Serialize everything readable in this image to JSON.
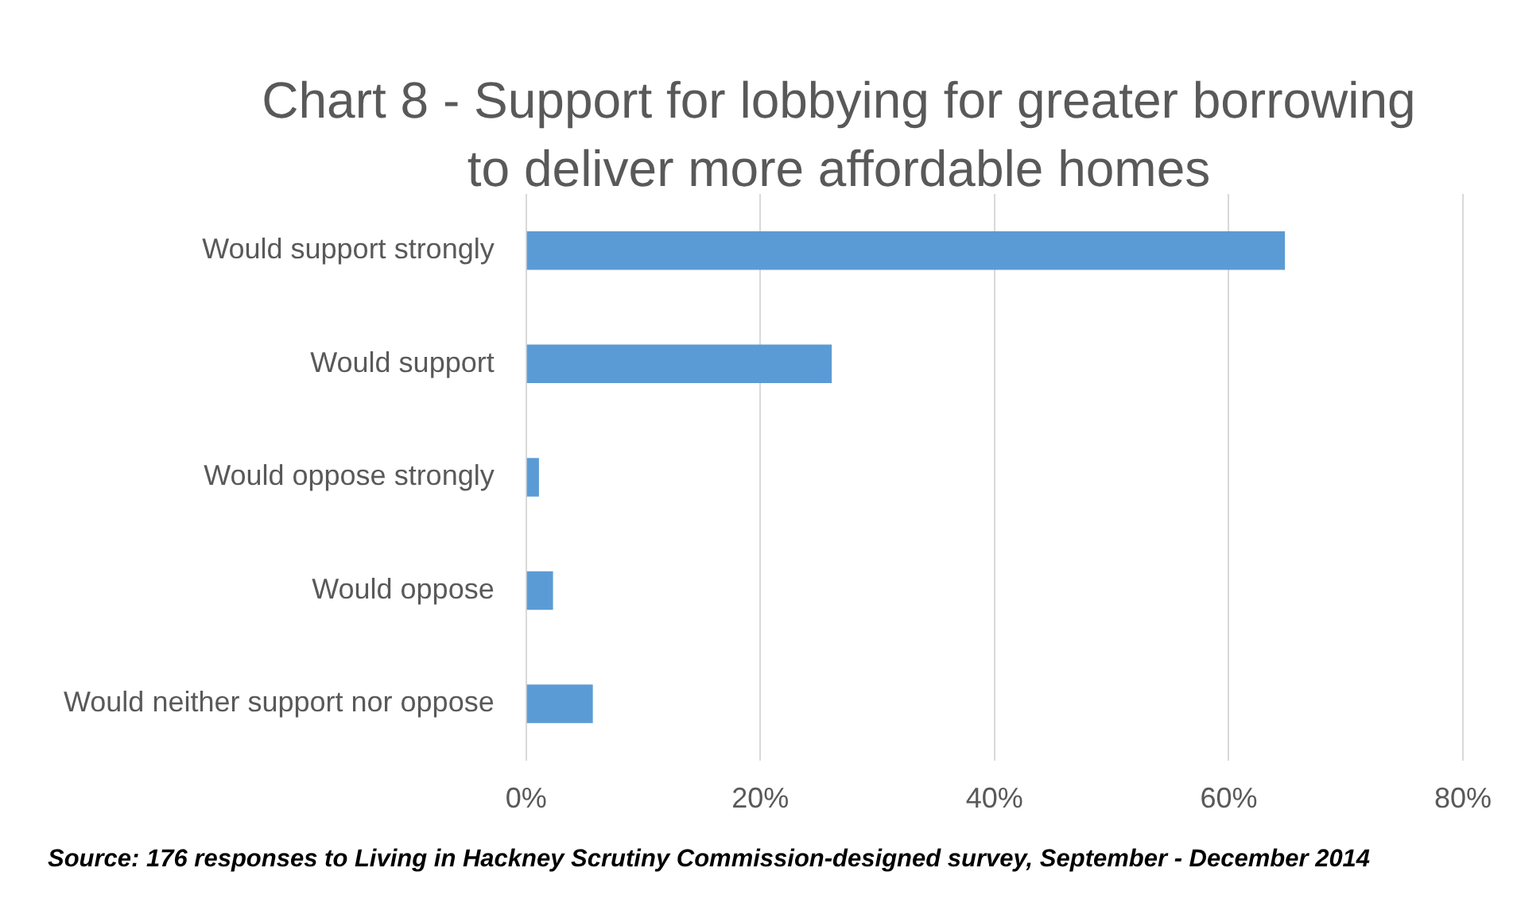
{
  "chart_data": {
    "type": "bar",
    "orientation": "horizontal",
    "title": "Chart 8 - Support for lobbying for greater borrowing to deliver more affordable homes",
    "categories": [
      "Would support strongly",
      "Would support",
      "Would oppose strongly",
      "Would oppose",
      "Would neither support nor oppose"
    ],
    "values": [
      64.8,
      26.1,
      1.1,
      2.3,
      5.7
    ],
    "color": "#5b9bd5",
    "xlim": [
      0,
      80
    ],
    "xticks": [
      {
        "value": 0,
        "label": "0%"
      },
      {
        "value": 20,
        "label": "20%"
      },
      {
        "value": 40,
        "label": "40%"
      },
      {
        "value": 60,
        "label": "60%"
      },
      {
        "value": 80,
        "label": "80%"
      }
    ],
    "grid": "x",
    "legend": false,
    "annotations": [
      "Source: 176 responses to Living in Hackney Scrutiny Commission-designed survey, September - December 2014"
    ]
  }
}
